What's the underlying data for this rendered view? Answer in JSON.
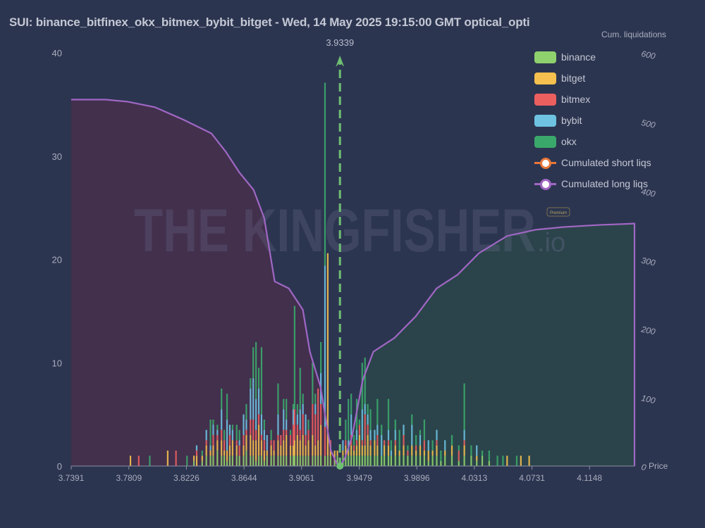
{
  "title": "SUI: binance_bitfinex_okx_bitmex_bybit_bitget - Wed, 14 May 2025 19:15:00 GMT optical_opti",
  "watermark": {
    "text": "THE KINGFISHER",
    "suffix": ".io",
    "badge": "Premium"
  },
  "chart_data": {
    "type": "bar",
    "stacked": true,
    "title": "SUI: binance_bitfinex_okx_bitmex_bybit_bitget - Wed, 14 May 2025 19:15:00 GMT optical_opti",
    "xlabel": "Price",
    "ylabel_right": "Cum. liquidations",
    "xlim": [
      3.7391,
      4.1474
    ],
    "ylim": [
      0,
      40
    ],
    "ylim_right": [
      0,
      600
    ],
    "x_ticks": [
      "3.7391",
      "3.7809",
      "3.8226",
      "3.8644",
      "3.9061",
      "3.9479",
      "3.9896",
      "4.0313",
      "4.0731",
      "4.1148"
    ],
    "y_ticks": [
      "0",
      "10",
      "20",
      "30",
      "40"
    ],
    "y_ticks_right": [
      "0",
      "100",
      "200",
      "300",
      "400",
      "500",
      "600"
    ],
    "grid": false,
    "legend_position": "top-right",
    "current_price": {
      "value": 3.9339,
      "label": "3.9339",
      "color": "#6fbf73"
    },
    "exchanges": [
      {
        "name": "binance",
        "color": "#8fd16d"
      },
      {
        "name": "bitget",
        "color": "#f5c04e"
      },
      {
        "name": "bitmex",
        "color": "#ec5f5f"
      },
      {
        "name": "bybit",
        "color": "#6ec3e2"
      },
      {
        "name": "okx",
        "color": "#3ba86b"
      }
    ],
    "lines": [
      {
        "name": "Cumulated short liqs",
        "color": "#e8773a"
      },
      {
        "name": "Cumulated long liqs",
        "color": "#a067c4"
      }
    ],
    "bucket_columns": [
      "price",
      "binance",
      "bitget",
      "bitmex",
      "bybit",
      "okx"
    ],
    "buckets": [
      [
        3.782,
        0,
        1,
        0,
        0,
        0
      ],
      [
        3.788,
        0,
        0,
        1,
        0,
        0
      ],
      [
        3.796,
        0,
        0,
        0,
        0,
        1
      ],
      [
        3.809,
        0,
        1.5,
        0,
        0,
        0
      ],
      [
        3.815,
        0,
        0,
        1.5,
        0,
        0
      ],
      [
        3.823,
        0,
        0,
        0,
        0,
        1
      ],
      [
        3.828,
        0.5,
        0.5,
        0,
        0,
        0
      ],
      [
        3.83,
        0,
        1,
        0.5,
        0.5,
        0
      ],
      [
        3.834,
        0.5,
        0.5,
        0,
        0,
        0.5
      ],
      [
        3.837,
        1,
        1,
        0.5,
        1,
        0
      ],
      [
        3.84,
        1,
        0.5,
        0,
        0.5,
        2.5
      ],
      [
        3.842,
        1,
        1,
        1,
        1,
        0.5
      ],
      [
        3.845,
        1.5,
        1,
        0.5,
        0.5,
        0.5
      ],
      [
        3.848,
        1,
        1.5,
        1,
        2,
        2
      ],
      [
        3.85,
        1,
        0.5,
        1,
        0,
        1
      ],
      [
        3.852,
        0.5,
        1,
        0,
        3,
        2.5
      ],
      [
        3.854,
        1,
        1,
        1,
        1,
        0
      ],
      [
        3.856,
        1,
        1.5,
        0,
        1,
        0.5
      ],
      [
        3.859,
        1,
        1,
        0.5,
        0,
        1.5
      ],
      [
        3.861,
        1,
        0,
        1,
        0.5,
        1
      ],
      [
        3.864,
        1,
        1,
        1,
        2,
        0
      ],
      [
        3.866,
        1.5,
        1.5,
        0.5,
        1,
        1.5
      ],
      [
        3.869,
        1,
        2,
        1.5,
        3,
        1
      ],
      [
        3.871,
        1,
        1.5,
        2,
        4,
        3
      ],
      [
        3.873,
        0.5,
        2,
        1,
        3,
        5.5
      ],
      [
        3.875,
        1,
        3,
        1,
        2.5,
        2
      ],
      [
        3.877,
        1,
        1.5,
        0.5,
        2,
        6.5
      ],
      [
        3.879,
        0.5,
        1,
        1,
        1,
        1
      ],
      [
        3.881,
        1,
        0.5,
        0,
        1.5,
        0
      ],
      [
        3.884,
        1,
        1,
        0.5,
        0,
        1
      ],
      [
        3.886,
        1,
        0.5,
        1,
        0,
        0
      ],
      [
        3.889,
        1,
        1.5,
        0.5,
        2,
        3
      ],
      [
        3.891,
        1,
        1,
        1,
        0,
        0
      ],
      [
        3.893,
        1,
        1.5,
        1,
        2,
        1
      ],
      [
        3.895,
        1,
        2,
        0.5,
        1,
        2
      ],
      [
        3.898,
        1,
        1,
        1,
        0,
        0.5
      ],
      [
        3.9,
        1,
        1,
        2,
        1.5,
        0.5
      ],
      [
        3.901,
        1,
        1.5,
        3,
        0,
        10
      ],
      [
        3.903,
        1,
        2,
        1,
        1,
        1
      ],
      [
        3.905,
        1,
        1.5,
        1,
        2,
        4
      ],
      [
        3.907,
        1,
        2,
        2,
        1,
        1
      ],
      [
        3.909,
        1,
        1,
        1,
        2,
        0
      ],
      [
        3.911,
        1,
        1.5,
        1,
        0,
        1
      ],
      [
        3.914,
        1,
        2,
        3,
        0,
        4
      ],
      [
        3.916,
        1,
        1,
        3,
        1,
        1
      ],
      [
        3.918,
        1,
        1.5,
        5,
        0,
        0
      ],
      [
        3.92,
        1,
        3,
        2,
        3,
        3
      ],
      [
        3.923,
        1,
        0,
        2.8,
        15.6,
        17.7
      ],
      [
        3.925,
        1,
        19.6,
        0,
        0,
        0
      ],
      [
        3.927,
        1,
        1,
        0.5,
        0,
        0
      ],
      [
        3.93,
        0.5,
        1,
        0,
        0,
        0
      ],
      [
        3.932,
        1,
        0.5,
        0,
        0,
        0
      ],
      [
        3.936,
        1,
        0.5,
        0,
        1,
        0
      ],
      [
        3.938,
        1,
        1,
        0.5,
        0,
        2
      ],
      [
        3.94,
        1,
        0.5,
        0,
        1,
        4
      ],
      [
        3.942,
        1,
        1,
        1,
        2,
        2
      ],
      [
        3.944,
        1,
        0.5,
        0.5,
        0,
        1
      ],
      [
        3.946,
        1,
        1,
        0.5,
        1,
        3
      ],
      [
        3.948,
        1,
        2,
        1,
        0,
        0.5
      ],
      [
        3.95,
        1,
        1,
        0.5,
        3,
        4.5
      ],
      [
        3.952,
        1,
        1,
        3,
        1,
        4.5
      ],
      [
        3.954,
        1,
        2,
        1,
        1,
        1
      ],
      [
        3.956,
        1,
        1,
        0.5,
        1,
        2
      ],
      [
        3.959,
        1,
        1.5,
        0,
        1,
        0
      ],
      [
        3.961,
        1,
        1,
        1,
        1,
        2.5
      ],
      [
        3.964,
        1,
        0,
        0,
        2,
        1
      ],
      [
        3.966,
        1,
        1,
        0.5,
        0,
        0
      ],
      [
        3.969,
        1,
        1,
        0.5,
        1,
        3
      ],
      [
        3.971,
        1,
        0,
        0,
        0.5,
        1
      ],
      [
        3.974,
        1,
        1,
        0.5,
        1,
        1
      ],
      [
        3.977,
        1,
        0.5,
        0,
        0,
        2
      ],
      [
        3.98,
        1,
        1,
        1,
        1,
        0
      ],
      [
        3.983,
        1,
        0,
        0.5,
        0,
        0.5
      ],
      [
        3.986,
        1,
        1,
        0,
        2,
        1
      ],
      [
        3.989,
        1,
        0.5,
        0.5,
        0,
        1
      ],
      [
        3.992,
        1,
        1,
        0,
        1,
        0.5
      ],
      [
        3.995,
        1,
        0.5,
        1,
        0,
        2
      ],
      [
        3.998,
        0.5,
        1,
        0,
        1,
        0
      ],
      [
        4.001,
        1,
        0.5,
        0,
        0,
        1
      ],
      [
        4.004,
        1,
        1,
        0.5,
        1,
        0
      ],
      [
        4.007,
        0.5,
        0,
        0,
        0,
        1
      ],
      [
        4.01,
        1,
        0.5,
        0,
        1,
        0
      ],
      [
        4.015,
        1,
        1,
        0,
        0,
        1
      ],
      [
        4.02,
        0.5,
        0,
        1,
        0,
        0.5
      ],
      [
        4.024,
        1,
        1,
        0.5,
        1,
        4.5
      ],
      [
        4.029,
        1,
        0,
        0,
        0,
        1
      ],
      [
        4.033,
        0.5,
        0.5,
        0,
        1,
        0
      ],
      [
        4.037,
        1,
        0,
        0,
        0,
        0.5
      ],
      [
        4.042,
        0.5,
        0,
        0,
        0,
        1
      ],
      [
        4.048,
        0,
        0,
        0,
        0,
        1
      ],
      [
        4.052,
        0,
        0,
        0,
        0,
        1
      ],
      [
        4.055,
        0,
        1,
        0,
        0,
        0
      ],
      [
        4.062,
        0,
        0,
        0,
        0,
        1
      ],
      [
        4.065,
        0,
        1,
        0,
        0,
        0
      ],
      [
        4.071,
        0,
        1,
        0,
        0,
        0
      ]
    ],
    "cum_long": [
      [
        3.7391,
        532
      ],
      [
        3.7641,
        532
      ],
      [
        3.78,
        529
      ],
      [
        3.7998,
        521
      ],
      [
        3.8203,
        503
      ],
      [
        3.8407,
        483
      ],
      [
        3.8509,
        457
      ],
      [
        3.8611,
        426
      ],
      [
        3.8713,
        401
      ],
      [
        3.879,
        360
      ],
      [
        3.8866,
        268
      ],
      [
        3.8968,
        258
      ],
      [
        3.907,
        227
      ],
      [
        3.9121,
        166
      ],
      [
        3.9198,
        115
      ],
      [
        3.9274,
        22
      ],
      [
        3.9325,
        0
      ]
    ],
    "cum_short": [
      [
        3.9339,
        0
      ],
      [
        3.9376,
        12
      ],
      [
        3.9427,
        43
      ],
      [
        3.9504,
        125
      ],
      [
        3.9581,
        166
      ],
      [
        3.9734,
        186
      ],
      [
        3.9887,
        217
      ],
      [
        4.004,
        258
      ],
      [
        4.0193,
        278
      ],
      [
        4.0346,
        309
      ],
      [
        4.055,
        334
      ],
      [
        4.0754,
        343
      ],
      [
        4.0959,
        347
      ],
      [
        4.1214,
        350
      ],
      [
        4.1469,
        352
      ]
    ]
  }
}
